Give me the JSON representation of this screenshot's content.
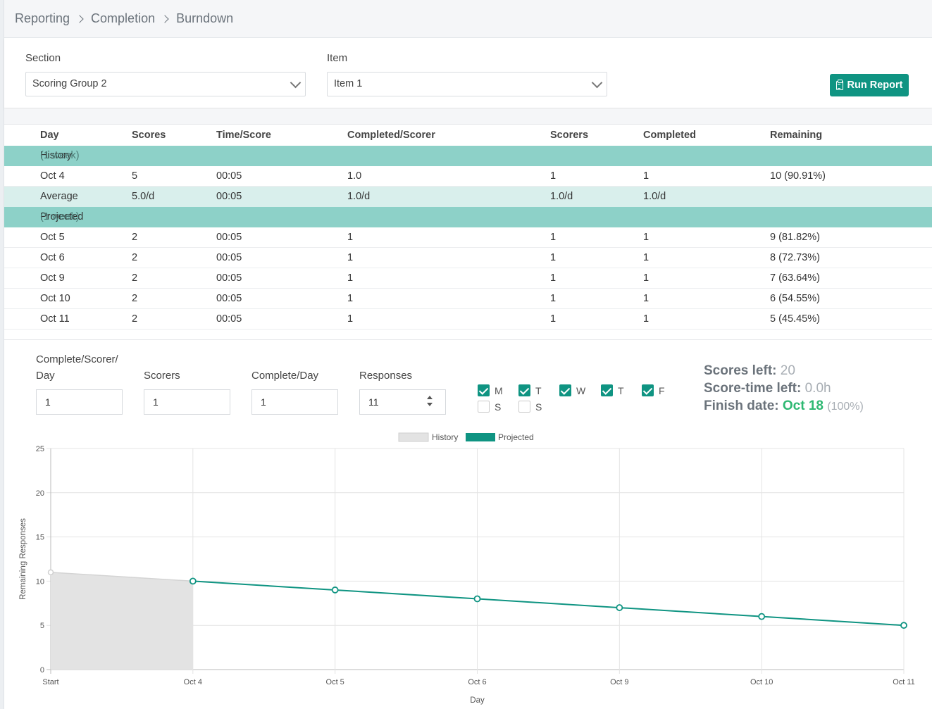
{
  "breadcrumb": [
    "Reporting",
    "Completion",
    "Burndown"
  ],
  "filters": {
    "section_label": "Section",
    "section_value": "Scoring Group 2",
    "item_label": "Item",
    "item_value": "Item 1",
    "run_label": "Run Report"
  },
  "table": {
    "headers": [
      "Day",
      "Scores",
      "Time/Score",
      "Completed/Scorer",
      "Scorers",
      "Completed",
      "Remaining"
    ],
    "history_group": {
      "label": "History",
      "note": "(1 week)"
    },
    "history_rows": [
      [
        "Oct 4",
        "5",
        "00:05",
        "1.0",
        "1",
        "1",
        "10 (90.91%)"
      ]
    ],
    "average_row": [
      "Average",
      "5.0/d",
      "00:05",
      "1.0/d",
      "1.0/d",
      "1.0/d",
      ""
    ],
    "projected_group": {
      "label": "Projected",
      "note": "(1 week)"
    },
    "projected_rows": [
      [
        "Oct 5",
        "2",
        "00:05",
        "1",
        "1",
        "1",
        "9 (81.82%)"
      ],
      [
        "Oct 6",
        "2",
        "00:05",
        "1",
        "1",
        "1",
        "8 (72.73%)"
      ],
      [
        "Oct 9",
        "2",
        "00:05",
        "1",
        "1",
        "1",
        "7 (63.64%)"
      ],
      [
        "Oct 10",
        "2",
        "00:05",
        "1",
        "1",
        "1",
        "6 (54.55%)"
      ],
      [
        "Oct 11",
        "2",
        "00:05",
        "1",
        "1",
        "1",
        "5 (45.45%)"
      ]
    ]
  },
  "params": {
    "complete_per_scorer_label_1": "Complete/Scorer/",
    "complete_per_scorer_label_2": "Day",
    "complete_per_scorer_value": "1",
    "scorers_label": "Scorers",
    "scorers_value": "1",
    "complete_per_day_label": "Complete/Day",
    "complete_per_day_value": "1",
    "responses_label": "Responses",
    "responses_value": "11"
  },
  "days": [
    {
      "label": "M",
      "checked": true
    },
    {
      "label": "T",
      "checked": true
    },
    {
      "label": "W",
      "checked": true
    },
    {
      "label": "T",
      "checked": true
    },
    {
      "label": "F",
      "checked": true
    },
    {
      "label": "S",
      "checked": false
    },
    {
      "label": "S",
      "checked": false
    }
  ],
  "summary": {
    "scores_left_label": "Scores left:",
    "scores_left_value": "20",
    "score_time_label": "Score-time left:",
    "score_time_value": "0.0h",
    "finish_label": "Finish date:",
    "finish_value": "Oct 18",
    "finish_pct": "(100%)"
  },
  "colors": {
    "accent": "#0f9482",
    "group_row": "#8dd1c8",
    "average_row": "#d9efec",
    "history_fill": "#e3e3e3",
    "finish_green": "#2eb872"
  },
  "chart_data": {
    "type": "line",
    "categories": [
      "Start",
      "Oct 4",
      "Oct 5",
      "Oct 6",
      "Oct 9",
      "Oct 10",
      "Oct 11"
    ],
    "series": [
      {
        "name": "History",
        "values": [
          11,
          10,
          null,
          null,
          null,
          null,
          null
        ],
        "color": "#e3e3e3"
      },
      {
        "name": "Projected",
        "values": [
          null,
          10,
          9,
          8,
          7,
          6,
          5
        ],
        "color": "#0f9482"
      }
    ],
    "xlabel": "Day",
    "ylabel": "Remaining Responses",
    "ylim": [
      0,
      25
    ],
    "yticks": [
      0,
      5,
      10,
      15,
      20,
      25
    ],
    "grid": true,
    "legend": "top-center"
  }
}
